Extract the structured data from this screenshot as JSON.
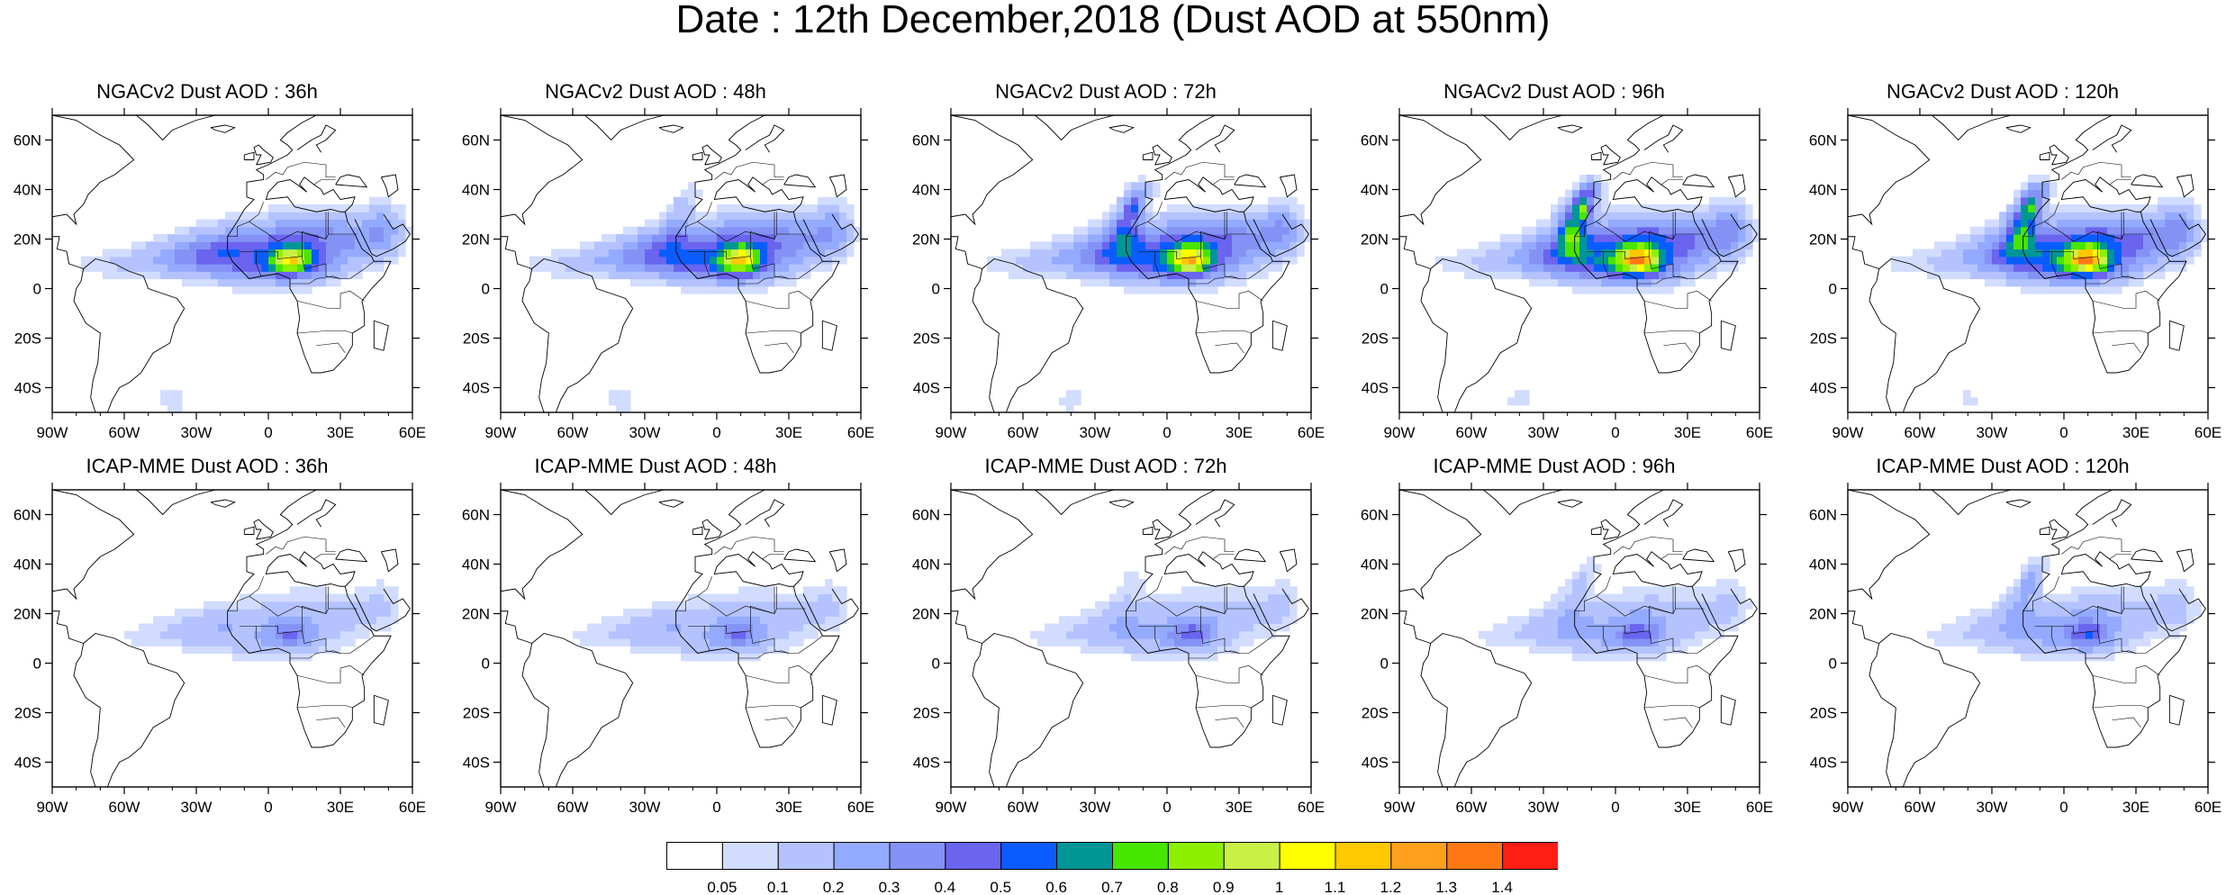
{
  "title": "Date : 12th December,2018 (Dust AOD at 550nm)",
  "map": {
    "lon_range": [
      -90,
      60
    ],
    "lat_range": [
      -50,
      70
    ],
    "lon_ticks": [
      "90W",
      "60W",
      "30W",
      "0",
      "30E",
      "60E"
    ],
    "lat_ticks": [
      "60N",
      "40N",
      "20N",
      "0",
      "20S",
      "40S"
    ]
  },
  "panels": [
    {
      "title": "NGACv2 Dust AOD : 36h",
      "intensity": 0.9,
      "west_plume": 1.0,
      "iberia": 0.0
    },
    {
      "title": "NGACv2 Dust AOD : 48h",
      "intensity": 0.95,
      "west_plume": 1.0,
      "iberia": 0.2
    },
    {
      "title": "NGACv2 Dust AOD : 72h",
      "intensity": 1.0,
      "west_plume": 0.9,
      "iberia": 0.6
    },
    {
      "title": "NGACv2 Dust AOD : 96h",
      "intensity": 1.1,
      "west_plume": 0.8,
      "iberia": 1.0
    },
    {
      "title": "NGACv2 Dust AOD : 120h",
      "intensity": 1.1,
      "west_plume": 0.7,
      "iberia": 0.9
    },
    {
      "title": "ICAP-MME Dust AOD : 36h",
      "intensity": 0.35,
      "west_plume": 0.4,
      "iberia": 0.0
    },
    {
      "title": "ICAP-MME Dust AOD : 48h",
      "intensity": 0.35,
      "west_plume": 0.4,
      "iberia": 0.0
    },
    {
      "title": "ICAP-MME Dust AOD : 72h",
      "intensity": 0.38,
      "west_plume": 0.35,
      "iberia": 0.1
    },
    {
      "title": "ICAP-MME Dust AOD : 96h",
      "intensity": 0.4,
      "west_plume": 0.35,
      "iberia": 0.2
    },
    {
      "title": "ICAP-MME Dust AOD : 120h",
      "intensity": 0.42,
      "west_plume": 0.35,
      "iberia": 0.3
    }
  ],
  "colorbar": {
    "labels": [
      "0.05",
      "0.1",
      "0.2",
      "0.3",
      "0.4",
      "0.5",
      "0.6",
      "0.7",
      "0.8",
      "0.9",
      "1",
      "1.1",
      "1.2",
      "1.3",
      "1.4"
    ],
    "colors": [
      "#ffffff",
      "#d2dcff",
      "#b4c3ff",
      "#94aaff",
      "#8592f5",
      "#6a64ef",
      "#0a5cff",
      "#009696",
      "#46e600",
      "#8cf000",
      "#c8f046",
      "#ffff00",
      "#ffc800",
      "#ffa01e",
      "#ff7814",
      "#ff1e14"
    ]
  }
}
